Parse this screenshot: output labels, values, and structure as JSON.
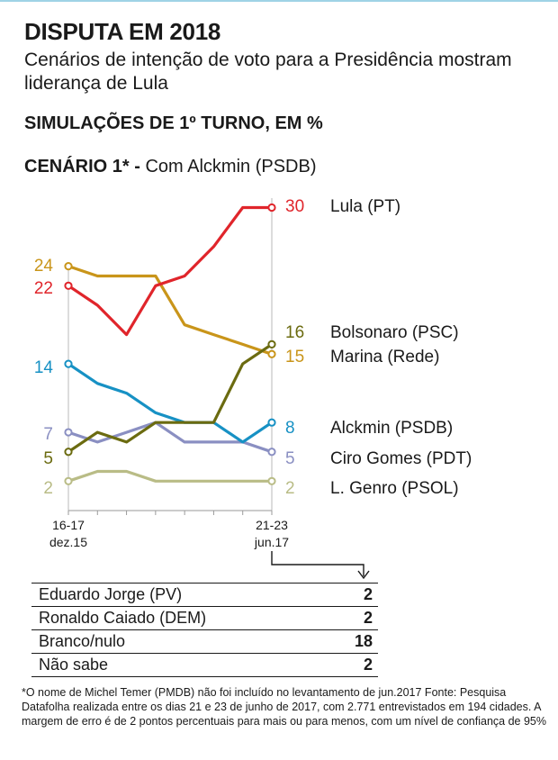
{
  "header": {
    "title": "DISPUTA EM 2018",
    "subtitle": "Cenários de intenção de voto para a Presidência mostram liderança de Lula",
    "section_label": "SIMULAÇÕES DE 1º TURNO, EM %",
    "scenario_bold": "CENÁRIO 1* -",
    "scenario_rest": "Com Alckmin (PSDB)"
  },
  "chart_data": {
    "type": "line",
    "x": [
      "16-17 dez.15",
      "",
      "",
      "",
      "",
      "",
      "",
      "21-23 jun.17"
    ],
    "x_tick_labels": [
      {
        "index": 0,
        "line1": "16-17",
        "line2": "dez.15"
      },
      {
        "index": 7,
        "line1": "21-23",
        "line2": "jun.17"
      }
    ],
    "ylim": [
      0,
      30
    ],
    "series": [
      {
        "name": "Lula (PT)",
        "color": "#e0252b",
        "values": [
          22,
          20,
          17,
          22,
          23,
          26,
          30,
          30
        ],
        "start_label": "22",
        "end_label": "30"
      },
      {
        "name": "Bolsonaro (PSC)",
        "color": "#6b6b10",
        "values": [
          5,
          7,
          6,
          8,
          8,
          8,
          14,
          16
        ],
        "start_label": "5",
        "end_label": "16"
      },
      {
        "name": "Marina (Rede)",
        "color": "#c9951a",
        "values": [
          24,
          23,
          23,
          23,
          18,
          17,
          16,
          15
        ],
        "start_label": "24",
        "end_label": "15"
      },
      {
        "name": "Alckmin (PSDB)",
        "color": "#1791c4",
        "values": [
          14,
          12,
          11,
          9,
          8,
          8,
          6,
          8
        ],
        "start_label": "14",
        "end_label": "8"
      },
      {
        "name": "Ciro Gomes (PDT)",
        "color": "#8a8fc2",
        "values": [
          7,
          6,
          7,
          8,
          6,
          6,
          6,
          5
        ],
        "start_label": "7",
        "end_label": "5"
      },
      {
        "name": "L. Genro (PSOL)",
        "color": "#b9bc86",
        "values": [
          2,
          3,
          3,
          2,
          2,
          2,
          2,
          2
        ],
        "start_label": "2",
        "end_label": "2"
      }
    ]
  },
  "table": {
    "rows": [
      {
        "label": "Eduardo Jorge (PV)",
        "value": "2"
      },
      {
        "label": "Ronaldo Caiado (DEM)",
        "value": "2"
      },
      {
        "label": "Branco/nulo",
        "value": "18"
      },
      {
        "label": "Não sabe",
        "value": "2"
      }
    ]
  },
  "footnote": "*O nome de Michel Temer (PMDB) não foi incluído no levantamento de jun.2017     Fonte: Pesquisa Datafolha realizada entre os dias 21 e 23 de junho de 2017, com 2.771 entrevistados em 194 cidades. A margem de erro é de 2 pontos percentuais para mais ou para menos, com um nível de confiança de 95%",
  "colors": {
    "lula": "#e0252b",
    "bolsonaro": "#6b6b10",
    "marina": "#c9951a",
    "alckmin": "#1791c4",
    "ciro": "#8a8fc2",
    "genro": "#b9bc86"
  }
}
